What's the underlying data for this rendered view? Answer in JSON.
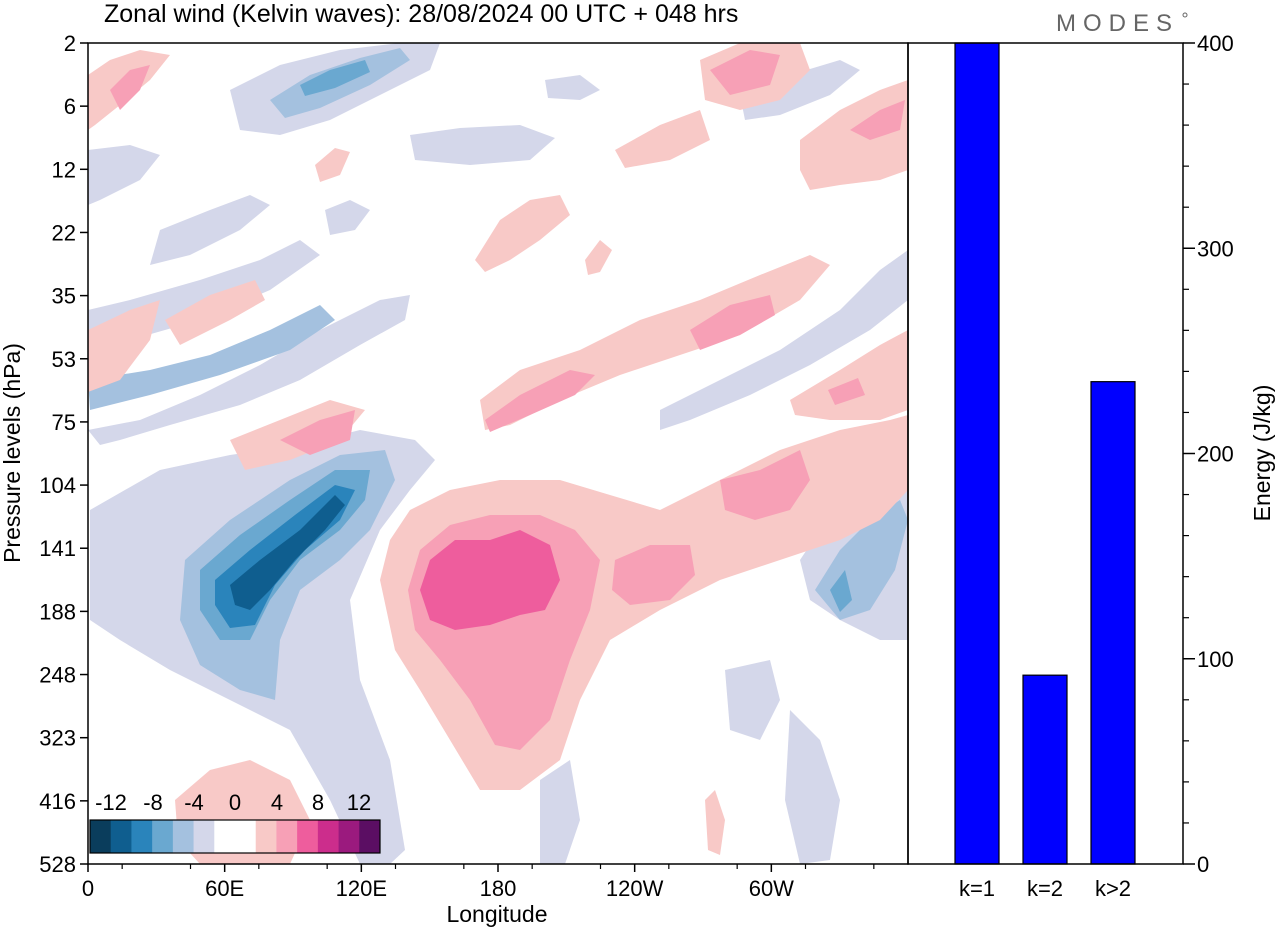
{
  "chart_data": [
    {
      "type": "heatmap",
      "title": "Zonal wind (Kelvin waves):  28/08/2024  00 UTC  + 048 hrs",
      "xlabel": "Longitude",
      "ylabel": "Pressure levels (hPa)",
      "x_ticks": [
        "0",
        "60E",
        "120E",
        "180",
        "120W",
        "60W"
      ],
      "y_ticks": [
        "2",
        "6",
        "12",
        "22",
        "35",
        "53",
        "75",
        "104",
        "141",
        "188",
        "248",
        "323",
        "416",
        "528"
      ],
      "colorbar": {
        "labels": [
          "-12",
          "-8",
          "-4",
          "0",
          "4",
          "8",
          "12"
        ],
        "colors": [
          "#0a3d5c",
          "#0f5e8f",
          "#2a84bb",
          "#6aa8d0",
          "#a4c1df",
          "#d4d7ea",
          "#ffffff",
          "#ffffff",
          "#f8c9c7",
          "#f7a0b6",
          "#ee5d9d",
          "#cc2d8c",
          "#9b1a7e",
          "#5b0e63"
        ]
      }
    },
    {
      "type": "bar",
      "categories": [
        "k=1",
        "k=2",
        "k>2"
      ],
      "values": [
        400,
        92,
        235
      ],
      "ylabel": "Energy (J/kg)",
      "ylim": [
        0,
        400
      ],
      "y_ticks": [
        "0",
        "100",
        "200",
        "300",
        "400"
      ],
      "bar_color": "#0000ff"
    }
  ],
  "logo": "MODES"
}
